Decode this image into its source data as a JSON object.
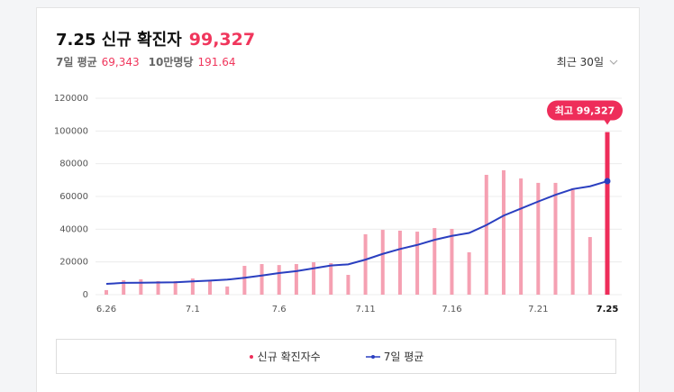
{
  "header": {
    "title": "7.25 신규 확진자",
    "today": "99,327",
    "avg_label": "7일 평균",
    "avg_value": "69,343",
    "per_label": "10만명당",
    "per_value": "191.64",
    "range": "최근 30일"
  },
  "chart_data": {
    "type": "bar",
    "categories": [
      "6.26",
      null,
      null,
      null,
      null,
      "7.1",
      null,
      null,
      null,
      null,
      "7.6",
      null,
      null,
      null,
      null,
      "7.11",
      null,
      null,
      null,
      null,
      "7.16",
      null,
      null,
      null,
      null,
      "7.21",
      null,
      null,
      null,
      "7.25"
    ],
    "series": [
      {
        "name": "신규 확진자수",
        "type": "bar",
        "color": "#f5a0b2",
        "highlight_color": "#ee2d5a",
        "values": [
          2800,
          8800,
          9400,
          8300,
          8300,
          9900,
          8800,
          5000,
          17600,
          18700,
          18100,
          18700,
          19800,
          19300,
          12100,
          36900,
          39600,
          39100,
          38500,
          40700,
          40200,
          25900,
          73200,
          76000,
          71000,
          68300,
          68300,
          65000,
          35200,
          99327
        ]
      },
      {
        "name": "7일 평균",
        "type": "line",
        "color": "#2a3fc0",
        "values": [
          6600,
          7200,
          7300,
          7400,
          7600,
          8100,
          8600,
          9200,
          10300,
          11700,
          13200,
          14400,
          16100,
          17800,
          18500,
          21400,
          24900,
          27900,
          30400,
          33500,
          35900,
          37700,
          42500,
          48300,
          52600,
          56900,
          61000,
          64500,
          66200,
          69343
        ]
      }
    ],
    "annotation": "최고 99,327",
    "ylim": [
      0,
      120000
    ],
    "yticks": [
      0,
      20000,
      40000,
      60000,
      80000,
      100000,
      120000
    ],
    "grid": true
  }
}
